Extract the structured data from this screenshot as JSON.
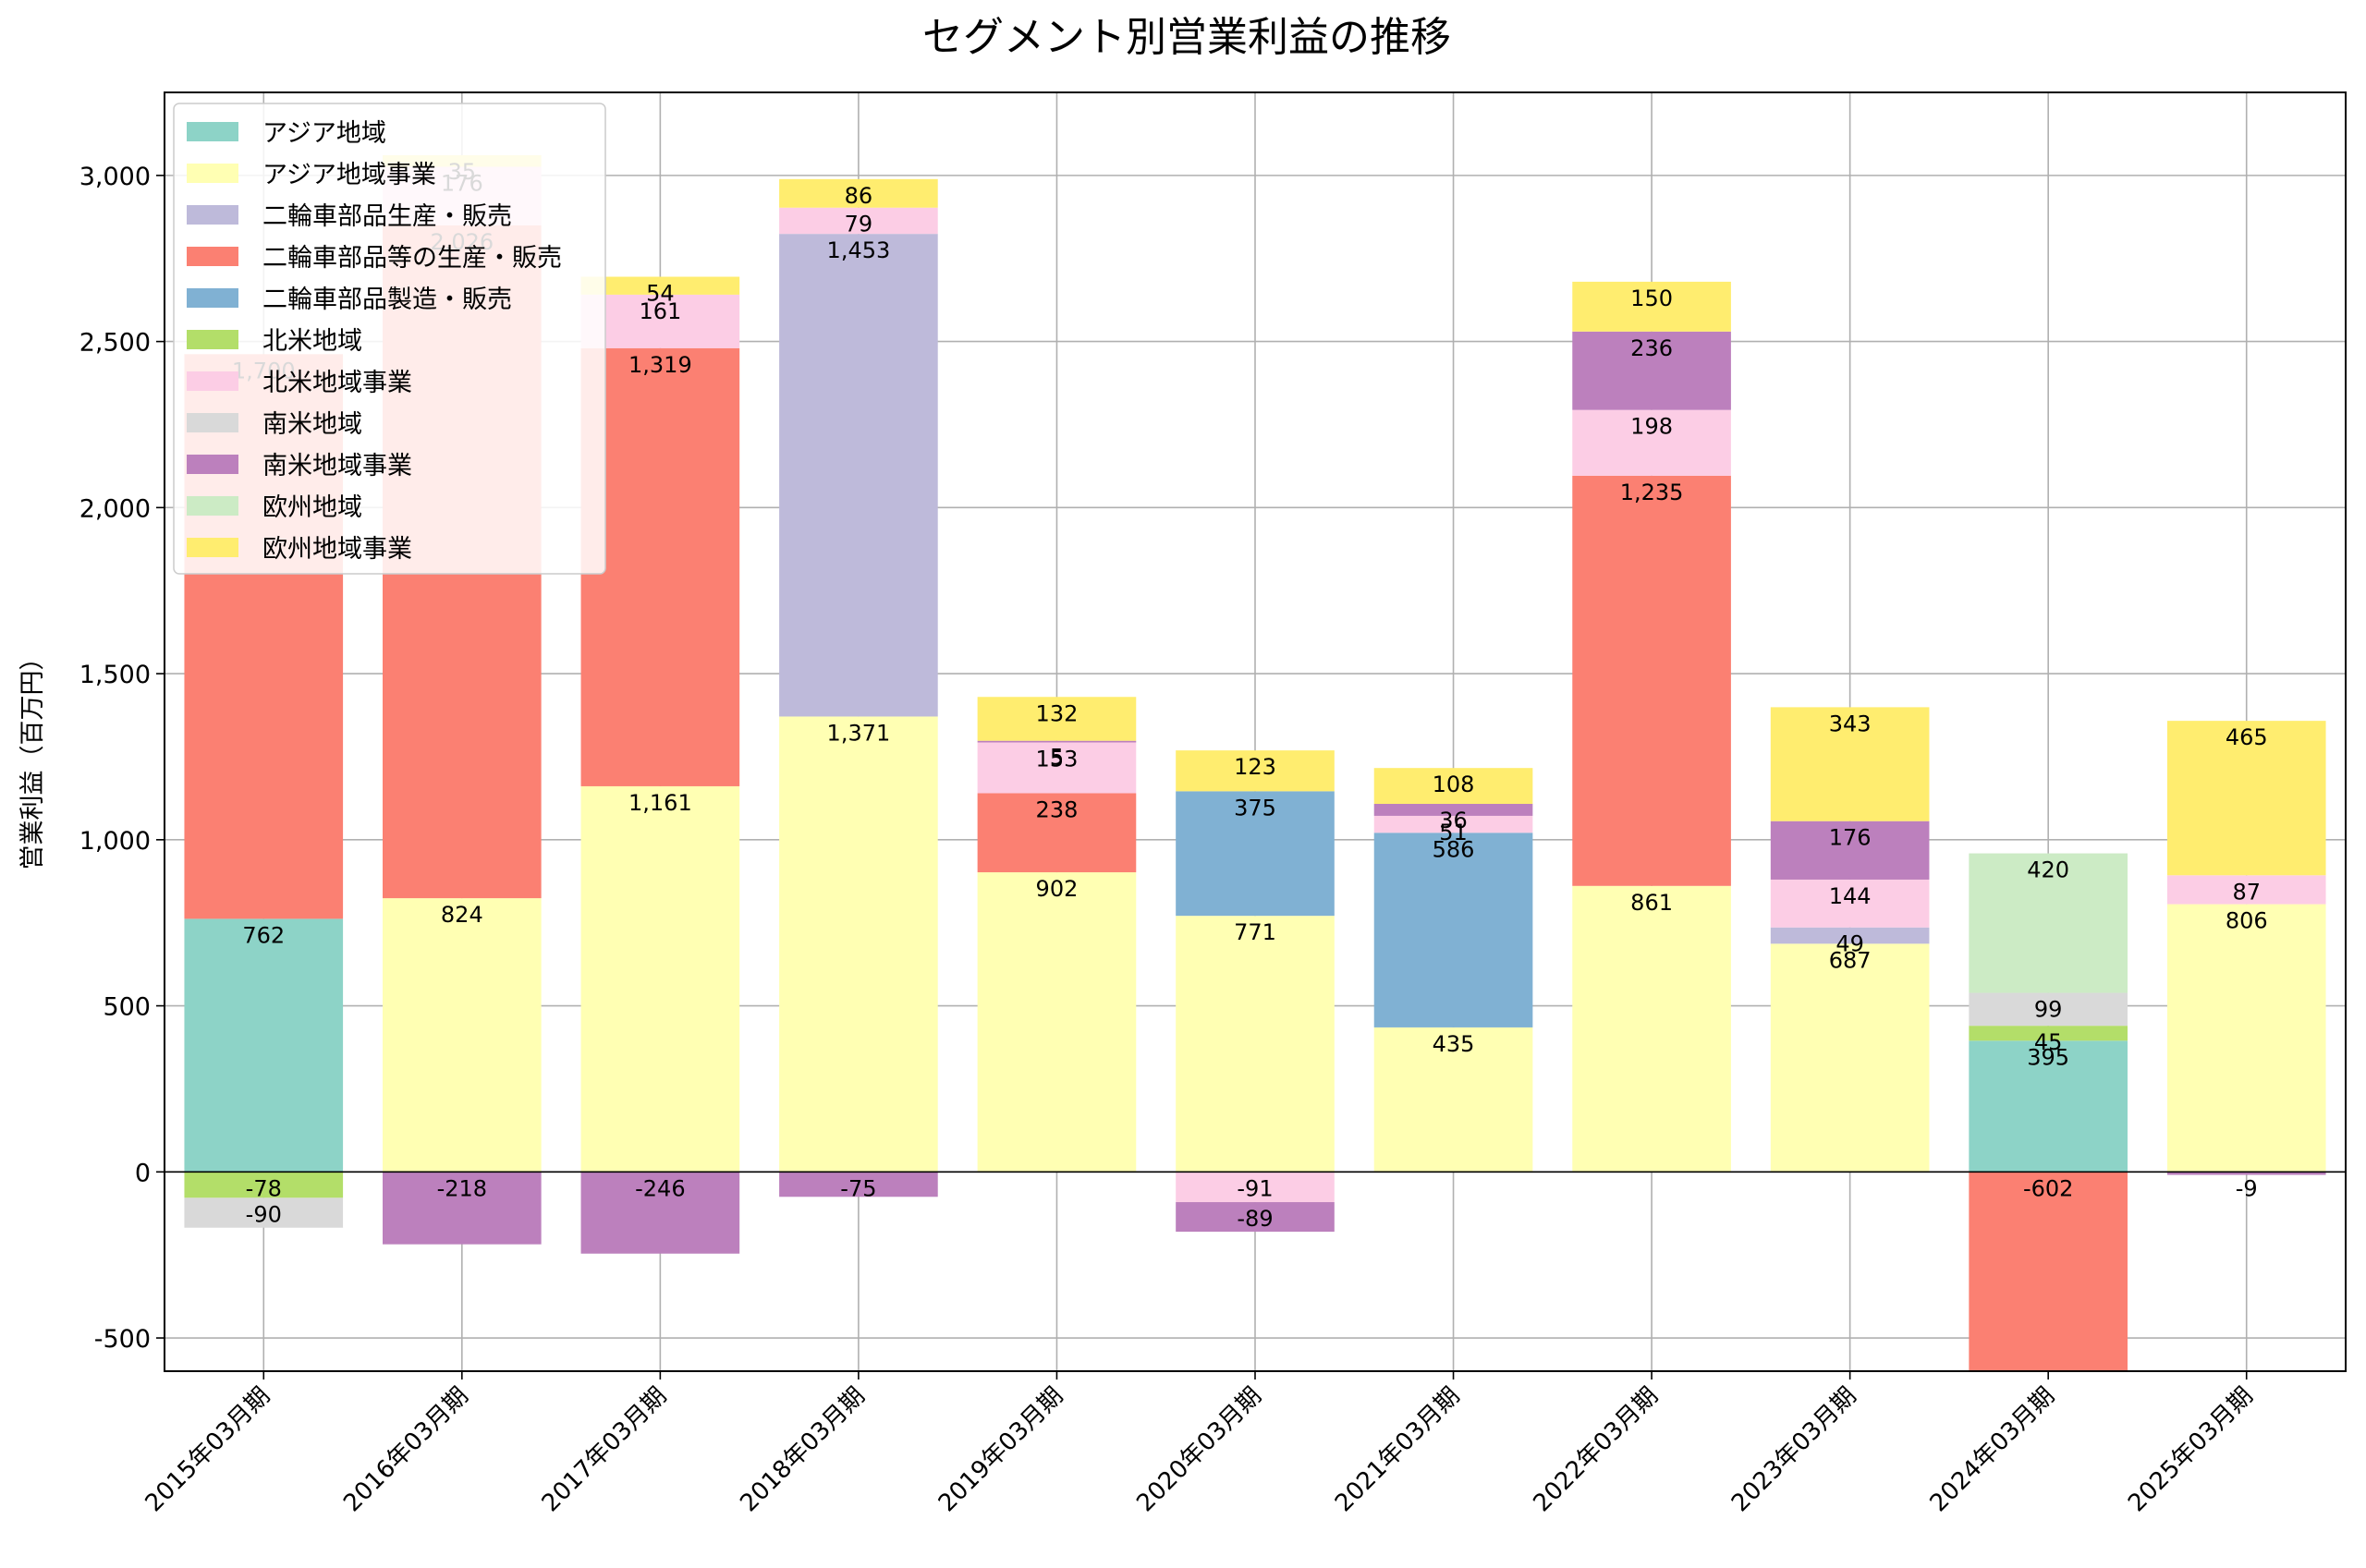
{
  "chart_data": {
    "type": "bar",
    "stacked": true,
    "title": "セグメント別営業利益の推移",
    "ylabel": "営業利益（百万円）",
    "xlabel": "",
    "ylim": [
      -600,
      3250
    ],
    "yticks": [
      -500,
      0,
      500,
      1000,
      1500,
      2000,
      2500,
      3000
    ],
    "ytick_labels": [
      "-500",
      "0",
      "500",
      "1,000",
      "1,500",
      "2,000",
      "2,500",
      "3,000"
    ],
    "grid": true,
    "legend_position": "top-left",
    "categories": [
      "2015年03月期",
      "2016年03月期",
      "2017年03月期",
      "2018年03月期",
      "2019年03月期",
      "2020年03月期",
      "2021年03月期",
      "2022年03月期",
      "2023年03月期",
      "2024年03月期",
      "2025年03月期"
    ],
    "series": [
      {
        "name": "アジア地域",
        "color": "#8dd3c7",
        "values": [
          762,
          0,
          0,
          0,
          0,
          0,
          0,
          0,
          0,
          395,
          0
        ]
      },
      {
        "name": "アジア地域事業",
        "color": "#ffffb3",
        "values": [
          0,
          824,
          1161,
          1371,
          902,
          771,
          435,
          861,
          687,
          0,
          806
        ]
      },
      {
        "name": "二輪車部品生産・販売",
        "color": "#bebada",
        "values": [
          0,
          0,
          0,
          1453,
          0,
          0,
          0,
          0,
          49,
          0,
          0
        ]
      },
      {
        "name": "二輪車部品等の生産・販売",
        "color": "#fb8072",
        "values": [
          1700,
          2026,
          1319,
          0,
          238,
          0,
          0,
          1235,
          0,
          -602,
          0
        ]
      },
      {
        "name": "二輪車部品製造・販売",
        "color": "#80b1d3",
        "values": [
          0,
          0,
          0,
          0,
          0,
          375,
          586,
          0,
          0,
          0,
          0
        ]
      },
      {
        "name": "北米地域",
        "color": "#b3de69",
        "values": [
          -78,
          0,
          0,
          0,
          0,
          0,
          0,
          0,
          0,
          45,
          0
        ]
      },
      {
        "name": "北米地域事業",
        "color": "#fccde5",
        "values": [
          0,
          176,
          161,
          79,
          153,
          -91,
          51,
          198,
          144,
          0,
          87
        ]
      },
      {
        "name": "南米地域",
        "color": "#d9d9d9",
        "values": [
          -90,
          0,
          0,
          0,
          0,
          0,
          0,
          0,
          0,
          99,
          0
        ]
      },
      {
        "name": "南米地域事業",
        "color": "#bc80bd",
        "values": [
          0,
          -218,
          -246,
          -75,
          5,
          -89,
          36,
          236,
          176,
          0,
          -9
        ]
      },
      {
        "name": "欧州地域",
        "color": "#ccebc5",
        "values": [
          0,
          0,
          0,
          0,
          0,
          0,
          0,
          0,
          0,
          420,
          0
        ]
      },
      {
        "name": "欧州地域事業",
        "color": "#ffed6f",
        "values": [
          0,
          35,
          54,
          86,
          132,
          123,
          108,
          150,
          343,
          0,
          465
        ]
      }
    ]
  }
}
